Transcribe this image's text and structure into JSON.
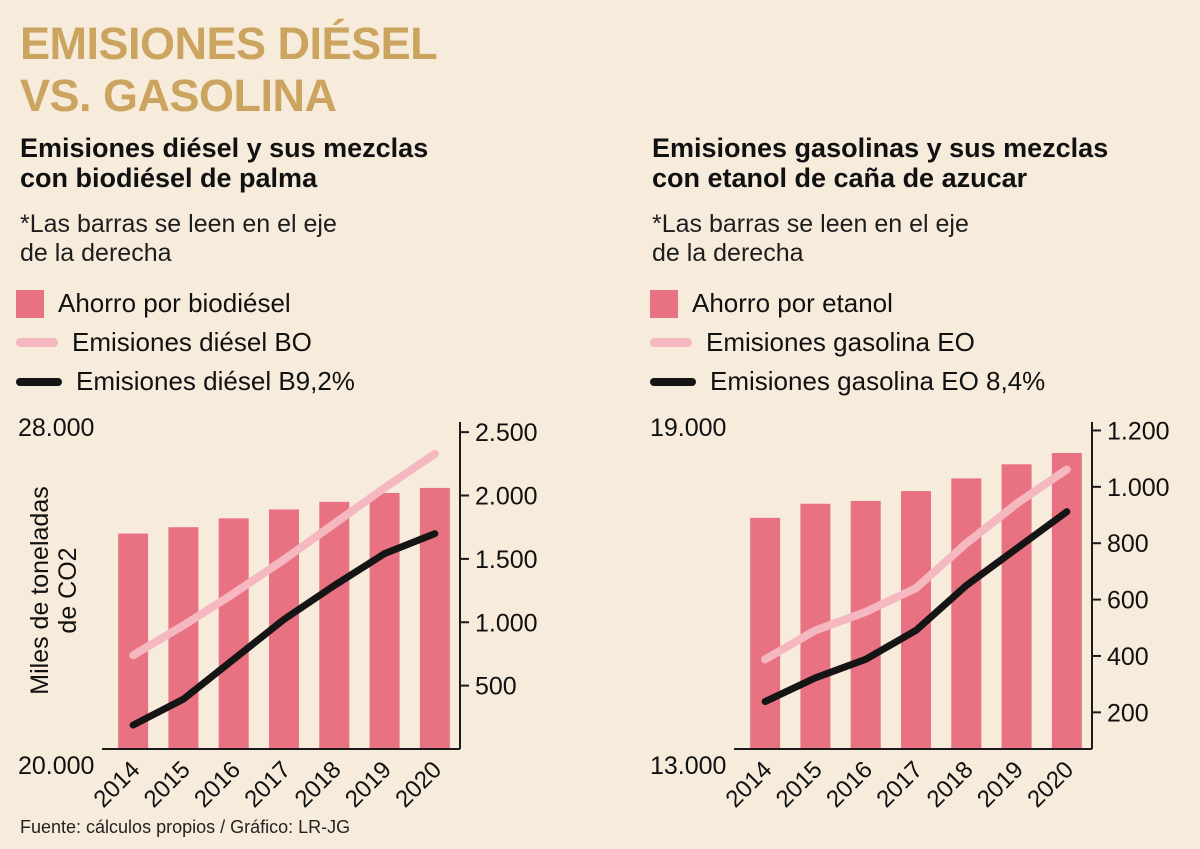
{
  "page": {
    "title": "EMISIONES DIÉSEL\nVS. GASOLINA",
    "source": "Fuente: cálculos propios / Gráfico: LR-JG"
  },
  "colors": {
    "background": "#f7ecdb",
    "title": "#cba460",
    "bar": "#e97282",
    "line_light": "#f5b8c0",
    "line_dark": "#151515",
    "axis": "#1a1a1a",
    "text": "#111111"
  },
  "chart_data": [
    {
      "type": "bar",
      "title": "Emisiones diésel y sus mezclas\ncon biodiésel de palma",
      "note": "*Las barras se leen en el eje\nde la derecha",
      "ylabel": "Miles de toneladas\nde CO2",
      "legend": [
        {
          "swatch": "square",
          "label": "Ahorro por biodiésel"
        },
        {
          "swatch": "line-pink",
          "label": "Emisiones diésel BO"
        },
        {
          "swatch": "line-black",
          "label": "Emisiones diésel B9,2%"
        }
      ],
      "categories": [
        "2014",
        "2015",
        "2016",
        "2017",
        "2018",
        "2019",
        "2020"
      ],
      "left_axis": {
        "range": [
          20000,
          28200
        ],
        "top_label": "28.000",
        "bottom_label": "20.000"
      },
      "right_axis": {
        "range": [
          0,
          2580
        ],
        "ticks": [
          {
            "v": 2500,
            "label": "2.500"
          },
          {
            "v": 2000,
            "label": "2.000"
          },
          {
            "v": 1500,
            "label": "1.500"
          },
          {
            "v": 1000,
            "label": "1.000"
          },
          {
            "v": 500,
            "label": "500"
          }
        ]
      },
      "bars_axis": "right",
      "bars": [
        1700,
        1750,
        1820,
        1890,
        1950,
        2020,
        2060
      ],
      "series": [
        {
          "name": "Emisiones diésel BO",
          "axis": "left",
          "values": [
            22350,
            23100,
            23900,
            24750,
            25650,
            26550,
            27400
          ]
        },
        {
          "name": "Emisiones diésel B9,2%",
          "axis": "left",
          "values": [
            20600,
            21250,
            22250,
            23250,
            24100,
            24900,
            25400
          ]
        }
      ]
    },
    {
      "type": "bar",
      "title": "Emisiones gasolinas y sus mezclas\ncon etanol de caña de azucar",
      "note": "*Las barras se leen en el eje\nde la derecha",
      "ylabel": "",
      "legend": [
        {
          "swatch": "square",
          "label": "Ahorro por etanol"
        },
        {
          "swatch": "line-pink",
          "label": "Emisiones gasolina EO"
        },
        {
          "swatch": "line-black",
          "label": "Emisiones gasolina EO 8,4%"
        }
      ],
      "categories": [
        "2014",
        "2015",
        "2016",
        "2017",
        "2018",
        "2019",
        "2020"
      ],
      "left_axis": {
        "range": [
          13000,
          19200
        ],
        "top_label": "19.000",
        "bottom_label": "13.000"
      },
      "right_axis": {
        "range": [
          70,
          1230
        ],
        "ticks": [
          {
            "v": 1200,
            "label": "1.200"
          },
          {
            "v": 1000,
            "label": "1.000"
          },
          {
            "v": 800,
            "label": "800"
          },
          {
            "v": 600,
            "label": "600"
          },
          {
            "v": 400,
            "label": "400"
          },
          {
            "v": 200,
            "label": "200"
          }
        ]
      },
      "bars_axis": "right",
      "bars": [
        890,
        940,
        950,
        985,
        1030,
        1080,
        1120
      ],
      "series": [
        {
          "name": "Emisiones gasolina EO",
          "axis": "left",
          "values": [
            14700,
            15250,
            15600,
            16050,
            16900,
            17650,
            18300
          ]
        },
        {
          "name": "Emisiones gasolina EO 8,4%",
          "axis": "left",
          "values": [
            13900,
            14350,
            14700,
            15250,
            16100,
            16800,
            17500
          ]
        }
      ]
    }
  ]
}
